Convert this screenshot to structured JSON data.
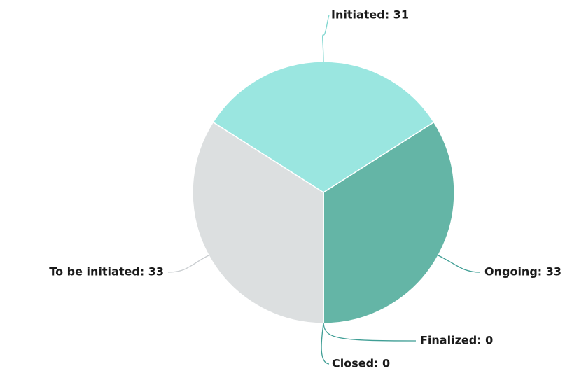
{
  "chart_data": {
    "type": "pie",
    "values": [
      31,
      33,
      0,
      0,
      33
    ],
    "value_labels": [
      "Initiated: 31",
      "Ongoing: 33",
      "Finalized: 0",
      "Closed: 0",
      "To be initiated: 33"
    ],
    "colors": [
      "#9ae6e0",
      "#64b5a6",
      "#3f9e95",
      "#2f8a8a",
      "#dcdfe0"
    ]
  }
}
